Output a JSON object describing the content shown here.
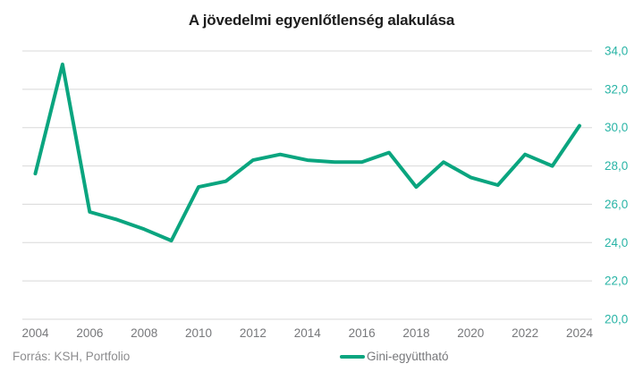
{
  "title": "A jövedelmi egyenlőtlenség alakulása",
  "footer": {
    "source": "Forrás: KSH, Portfolio"
  },
  "legend": {
    "label": "Gini-együttható"
  },
  "colors": {
    "line": "#0aa57f",
    "y_axis_labels": "#29b4a6",
    "x_axis_labels": "#77787b",
    "grid": "#d8d8d8",
    "title_text": "#1d1d1d",
    "source_text": "#8c8c8e",
    "background": "#ffffff"
  },
  "chart_data": {
    "type": "line",
    "title": "A jövedelmi egyenlőtlenség alakulása",
    "xlabel": "",
    "ylabel": "",
    "x": [
      2004,
      2005,
      2006,
      2007,
      2008,
      2009,
      2010,
      2011,
      2012,
      2013,
      2014,
      2015,
      2016,
      2017,
      2018,
      2019,
      2020,
      2021,
      2022,
      2023,
      2024
    ],
    "series": [
      {
        "name": "Gini-együttható",
        "values": [
          27.6,
          33.3,
          25.6,
          25.2,
          24.7,
          24.1,
          26.9,
          27.2,
          28.3,
          28.6,
          28.3,
          28.2,
          28.2,
          28.7,
          26.9,
          28.2,
          27.4,
          27.0,
          28.6,
          28.0,
          30.1
        ]
      }
    ],
    "xticks": [
      2004,
      2006,
      2008,
      2010,
      2012,
      2014,
      2016,
      2018,
      2020,
      2022,
      2024
    ],
    "yticks": [
      20,
      22,
      24,
      26,
      28,
      30,
      32,
      34
    ],
    "ytick_labels": [
      "20,0",
      "22,0",
      "24,0",
      "26,0",
      "28,0",
      "30,0",
      "32,0",
      "34,0"
    ],
    "ylim": [
      20,
      34
    ],
    "xlim": [
      2004,
      2024
    ],
    "grid": "horizontal",
    "y_axis_side": "right",
    "legend_position": "bottom-center",
    "decimal_separator": ","
  }
}
